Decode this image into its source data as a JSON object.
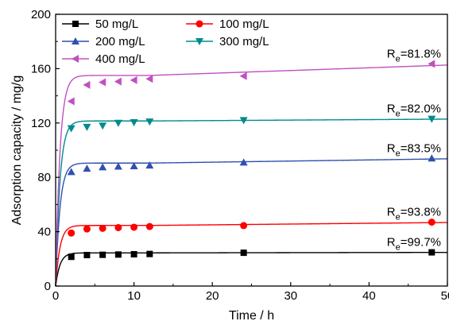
{
  "chart_data": {
    "type": "scatter",
    "xlabel": "Time / h",
    "ylabel": "Adsorption capacity / mg/g",
    "xlim": [
      0,
      50
    ],
    "ylim": [
      0,
      200
    ],
    "x_ticks": [
      0,
      10,
      20,
      30,
      40,
      50
    ],
    "y_ticks": [
      0,
      40,
      80,
      120,
      160,
      200
    ],
    "grid": false,
    "legend_position": "top-left",
    "series": [
      {
        "name": "50 mg/L",
        "color": "#000000",
        "marker": "square",
        "x": [
          2,
          4,
          6,
          8,
          10,
          12,
          24,
          48
        ],
        "y": [
          21.5,
          22.8,
          23.0,
          23.2,
          23.4,
          23.6,
          24.5,
          24.8
        ],
        "fit_qe": 24.4,
        "fit_k": 0.55,
        "annotation": {
          "prefix": "R",
          "subscript": "e",
          "value": "=99.7%"
        }
      },
      {
        "name": "100 mg/L",
        "color": "#ff0000",
        "marker": "circle",
        "x": [
          2,
          4,
          6,
          8,
          10,
          12,
          24,
          48
        ],
        "y": [
          39.0,
          42.0,
          42.5,
          43.0,
          43.3,
          43.8,
          44.5,
          47.0
        ],
        "fit_qe": 44.6,
        "fit_k": 0.6,
        "annotation": {
          "prefix": "R",
          "subscript": "e",
          "value": "=93.8%"
        }
      },
      {
        "name": "200 mg/L",
        "color": "#3050b0",
        "marker": "triangle-up",
        "x": [
          2,
          4,
          6,
          8,
          10,
          12,
          24,
          48
        ],
        "y": [
          84.0,
          86.5,
          87.5,
          88.0,
          88.3,
          88.8,
          91.0,
          94.0
        ],
        "fit_qe": 90.5,
        "fit_k": 0.65,
        "annotation": {
          "prefix": "R",
          "subscript": "e",
          "value": "=83.5%"
        }
      },
      {
        "name": "300 mg/L",
        "color": "#008b8b",
        "marker": "triangle-down",
        "x": [
          2,
          4,
          6,
          8,
          10,
          12,
          24,
          48
        ],
        "y": [
          116.0,
          117.0,
          118.0,
          120.0,
          120.5,
          121.0,
          122.0,
          123.0
        ],
        "fit_qe": 121.5,
        "fit_k": 0.7,
        "annotation": {
          "prefix": "R",
          "subscript": "e",
          "value": "=82.0%"
        }
      },
      {
        "name": "400 mg/L",
        "color": "#c050c0",
        "marker": "triangle-left",
        "x": [
          2,
          4,
          6,
          8,
          10,
          12,
          24,
          48
        ],
        "y": [
          136.0,
          148.0,
          150.0,
          150.5,
          151.5,
          152.5,
          154.5,
          163.5
        ],
        "fit_qe": 155.0,
        "fit_k": 0.5,
        "annotation": {
          "prefix": "R",
          "subscript": "e",
          "value": "=81.8%"
        }
      }
    ]
  }
}
